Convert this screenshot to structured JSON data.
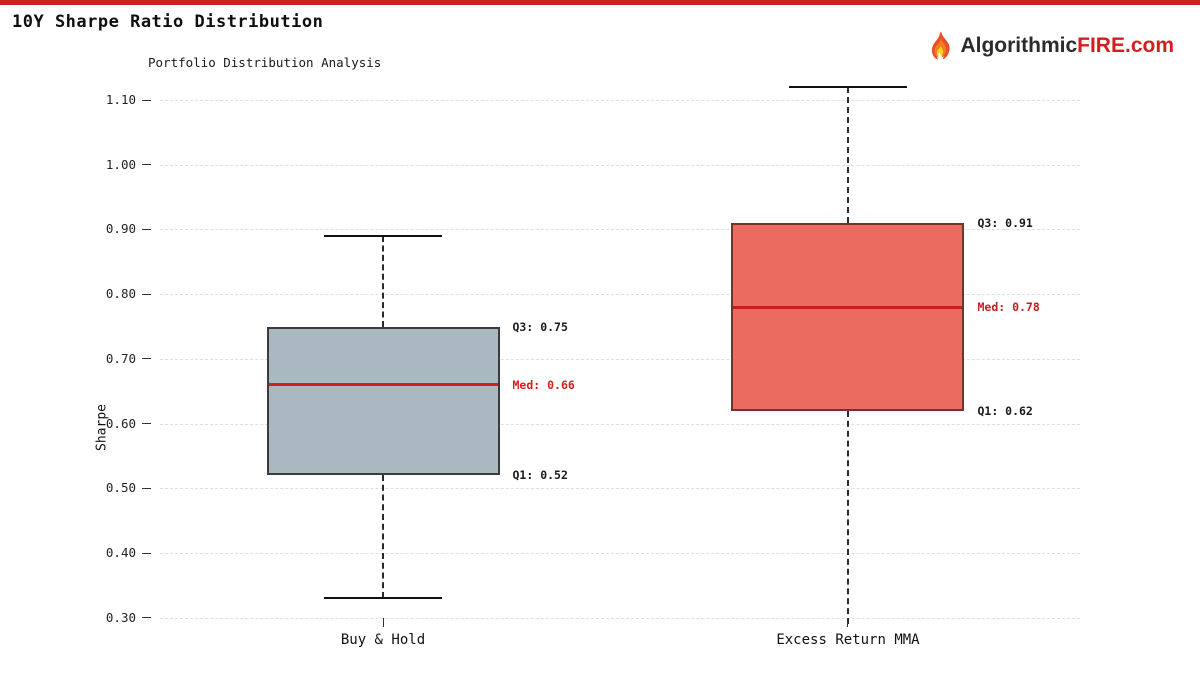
{
  "page": {
    "title": "10Y Sharpe Ratio Distribution",
    "top_bar_color": "#cf2020"
  },
  "brand": {
    "prefix": "Algorithmic",
    "fire": "FIRE",
    "tld": ".com",
    "prefix_color": "#2b2b2b",
    "accent_color": "#d41f1f"
  },
  "chart_data": {
    "type": "boxplot",
    "title": "Portfolio Distribution Analysis",
    "ylabel": "Sharpe",
    "ylim": [
      0.295,
      1.131
    ],
    "yticks": [
      0.3,
      0.4,
      0.5,
      0.6,
      0.7,
      0.8,
      0.9,
      1.0,
      1.1
    ],
    "grid": "horizontal-dashed",
    "legend": "none",
    "categories": [
      "Buy & Hold",
      "Excess Return MMA"
    ],
    "series": [
      {
        "label": "Buy & Hold",
        "q1": 0.52,
        "median": 0.66,
        "q3": 0.75,
        "whisker_low": 0.33,
        "whisker_high": 0.89,
        "whisker_low_capped": true,
        "whisker_high_capped": true,
        "box_color": "#aab9c1",
        "edge_color": "#3c3c3c",
        "median_color": "#d41f1f",
        "annotations": {
          "q3": "Q3: 0.75",
          "med": "Med: 0.66",
          "q1": "Q1: 0.52"
        }
      },
      {
        "label": "Excess Return MMA",
        "q1": 0.62,
        "median": 0.78,
        "q3": 0.91,
        "whisker_low": 0.29,
        "whisker_high": 1.12,
        "whisker_low_capped": false,
        "whisker_high_capped": true,
        "box_color": "#ec6b60",
        "edge_color": "#74332c",
        "median_color": "#c41d1d",
        "annotations": {
          "q3": "Q3: 0.91",
          "med": "Med: 0.78",
          "q1": "Q1: 0.62"
        }
      }
    ]
  }
}
